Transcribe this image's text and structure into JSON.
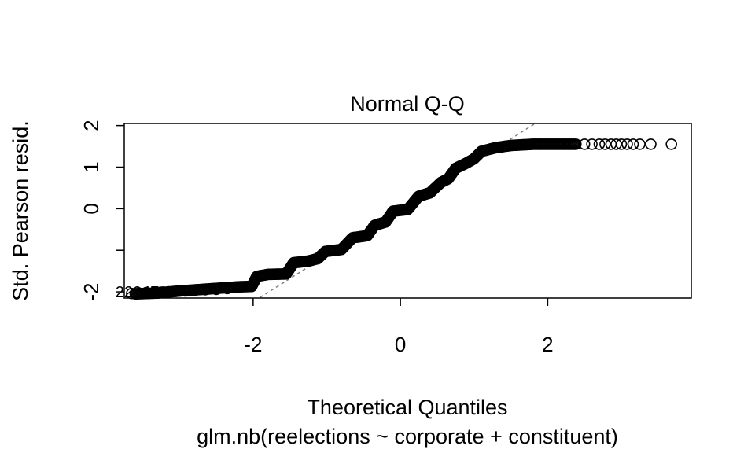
{
  "chart_data": {
    "type": "scatter",
    "title": "Normal Q-Q",
    "xlabel": "Theoretical Quantiles",
    "ylabel": "Std. Pearson resid.",
    "subtitle": "glm.nb(reelections ~ corporate + constituent)",
    "xlim": [
      -3.75,
      3.95
    ],
    "ylim": [
      -2.15,
      2.05
    ],
    "x_ticks": [
      -2,
      0,
      2
    ],
    "x_tick_labels": [
      "-2",
      "0",
      "2"
    ],
    "y_ticks": [
      -2,
      -1,
      0,
      1,
      2
    ],
    "y_tick_labels": [
      "-2",
      "",
      "0",
      "1",
      "2"
    ],
    "reference_line": {
      "style": "dashed",
      "color": "#808080",
      "intercept": 0,
      "slope": 1.12
    },
    "point_label": {
      "text": "2204793",
      "x": -3.72,
      "y": -2.0
    },
    "bulk_curve_points": [
      [
        -3.6,
        -2.05
      ],
      [
        -3.3,
        -2.03
      ],
      [
        -3.0,
        -1.98
      ],
      [
        -2.6,
        -1.93
      ],
      [
        -2.2,
        -1.88
      ],
      [
        -2.02,
        -1.87
      ],
      [
        -1.95,
        -1.63
      ],
      [
        -1.8,
        -1.58
      ],
      [
        -1.55,
        -1.57
      ],
      [
        -1.45,
        -1.3
      ],
      [
        -1.25,
        -1.26
      ],
      [
        -1.12,
        -1.2
      ],
      [
        -1.02,
        -1.03
      ],
      [
        -0.8,
        -0.98
      ],
      [
        -0.65,
        -0.7
      ],
      [
        -0.45,
        -0.65
      ],
      [
        -0.35,
        -0.4
      ],
      [
        -0.2,
        -0.32
      ],
      [
        -0.1,
        -0.06
      ],
      [
        0.1,
        -0.02
      ],
      [
        0.25,
        0.3
      ],
      [
        0.4,
        0.38
      ],
      [
        0.55,
        0.63
      ],
      [
        0.65,
        0.72
      ],
      [
        0.75,
        0.97
      ],
      [
        0.9,
        1.1
      ],
      [
        1.0,
        1.2
      ],
      [
        1.1,
        1.38
      ],
      [
        1.3,
        1.47
      ],
      [
        1.5,
        1.52
      ],
      [
        1.8,
        1.55
      ],
      [
        2.4,
        1.55
      ]
    ],
    "tail_points": [
      [
        2.5,
        1.55
      ],
      [
        2.6,
        1.55
      ],
      [
        2.7,
        1.55
      ],
      [
        2.78,
        1.55
      ],
      [
        2.86,
        1.55
      ],
      [
        2.93,
        1.55
      ],
      [
        3.0,
        1.55
      ],
      [
        3.08,
        1.55
      ],
      [
        3.16,
        1.55
      ],
      [
        3.25,
        1.55
      ],
      [
        3.4,
        1.55
      ],
      [
        3.68,
        1.55
      ],
      [
        -2.35,
        -1.92
      ],
      [
        -2.5,
        -1.94
      ],
      [
        -2.65,
        -1.95
      ],
      [
        -2.8,
        -1.97
      ],
      [
        -2.92,
        -1.98
      ],
      [
        -3.05,
        -1.99
      ],
      [
        -3.15,
        -2.0
      ],
      [
        -3.25,
        -2.01
      ],
      [
        -3.35,
        -2.02
      ],
      [
        -3.45,
        -2.02
      ],
      [
        -3.55,
        -2.03
      ],
      [
        -3.65,
        -2.04
      ]
    ]
  }
}
